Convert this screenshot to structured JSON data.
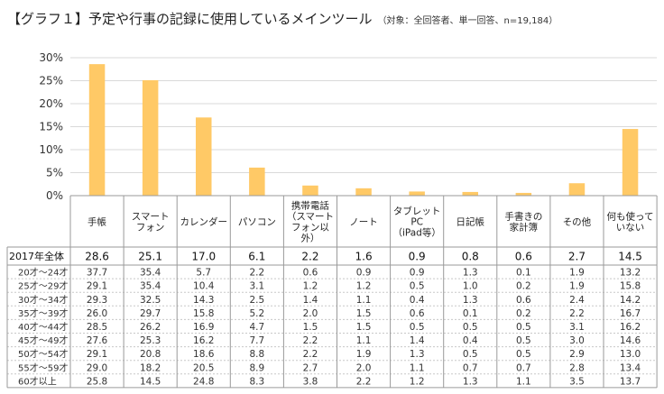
{
  "title": {
    "main": "【グラフ１】予定や行事の記録に使用しているメインツール",
    "note": "（対象：全回答者、単一回答、n=19,184）"
  },
  "chart_data": {
    "type": "bar",
    "categories": [
      [
        "手帳"
      ],
      [
        "スマート",
        "フォン"
      ],
      [
        "カレンダー"
      ],
      [
        "パソコン"
      ],
      [
        "携帯電話",
        "（スマート",
        "フォン以",
        "外）"
      ],
      [
        "ノート"
      ],
      [
        "タブレット",
        "PC",
        "（iPad等）"
      ],
      [
        "日記帳"
      ],
      [
        "手書きの",
        "家計簿"
      ],
      [
        "その他"
      ],
      [
        "何も使って",
        "いない"
      ]
    ],
    "values": [
      28.6,
      25.1,
      17.0,
      6.1,
      2.2,
      1.6,
      0.9,
      0.8,
      0.6,
      2.7,
      14.5
    ],
    "ylim": [
      0,
      30
    ],
    "yticks": [
      "0%",
      "5%",
      "10%",
      "15%",
      "20%",
      "25%",
      "30%"
    ],
    "grid": true,
    "bar_color": "#FFC966",
    "table": {
      "total": {
        "label": "2017年全体",
        "values": [
          "28.6",
          "25.1",
          "17.0",
          "6.1",
          "2.2",
          "1.6",
          "0.9",
          "0.8",
          "0.6",
          "2.7",
          "14.5"
        ]
      },
      "rows": [
        {
          "label": "20才～24才",
          "values": [
            "37.7",
            "35.4",
            "5.7",
            "2.2",
            "0.6",
            "0.9",
            "0.9",
            "1.3",
            "0.1",
            "1.9",
            "13.2"
          ]
        },
        {
          "label": "25才～29才",
          "values": [
            "29.1",
            "35.4",
            "10.4",
            "3.1",
            "1.2",
            "1.2",
            "0.5",
            "1.0",
            "0.2",
            "1.9",
            "15.8"
          ]
        },
        {
          "label": "30才～34才",
          "values": [
            "29.3",
            "32.5",
            "14.3",
            "2.5",
            "1.4",
            "1.1",
            "0.4",
            "1.3",
            "0.6",
            "2.4",
            "14.2"
          ]
        },
        {
          "label": "35才～39才",
          "values": [
            "26.0",
            "29.7",
            "15.8",
            "5.2",
            "2.0",
            "1.5",
            "0.6",
            "0.1",
            "0.2",
            "2.2",
            "16.7"
          ]
        },
        {
          "label": "40才～44才",
          "values": [
            "28.5",
            "26.2",
            "16.9",
            "4.7",
            "1.5",
            "1.5",
            "0.5",
            "0.5",
            "0.5",
            "3.1",
            "16.2"
          ]
        },
        {
          "label": "45才～49才",
          "values": [
            "27.6",
            "25.3",
            "16.2",
            "7.7",
            "2.2",
            "1.1",
            "1.4",
            "0.4",
            "0.5",
            "3.0",
            "14.6"
          ]
        },
        {
          "label": "50才～54才",
          "values": [
            "29.1",
            "20.8",
            "18.6",
            "8.8",
            "2.2",
            "1.9",
            "1.3",
            "0.5",
            "0.5",
            "2.9",
            "13.0"
          ]
        },
        {
          "label": "55才～59才",
          "values": [
            "29.0",
            "18.2",
            "20.5",
            "8.9",
            "2.7",
            "2.0",
            "1.1",
            "0.7",
            "0.7",
            "2.8",
            "13.4"
          ]
        },
        {
          "label": "60才以上",
          "values": [
            "25.8",
            "14.5",
            "24.8",
            "8.3",
            "3.8",
            "2.2",
            "1.2",
            "1.3",
            "1.1",
            "3.5",
            "13.7"
          ]
        }
      ]
    }
  }
}
